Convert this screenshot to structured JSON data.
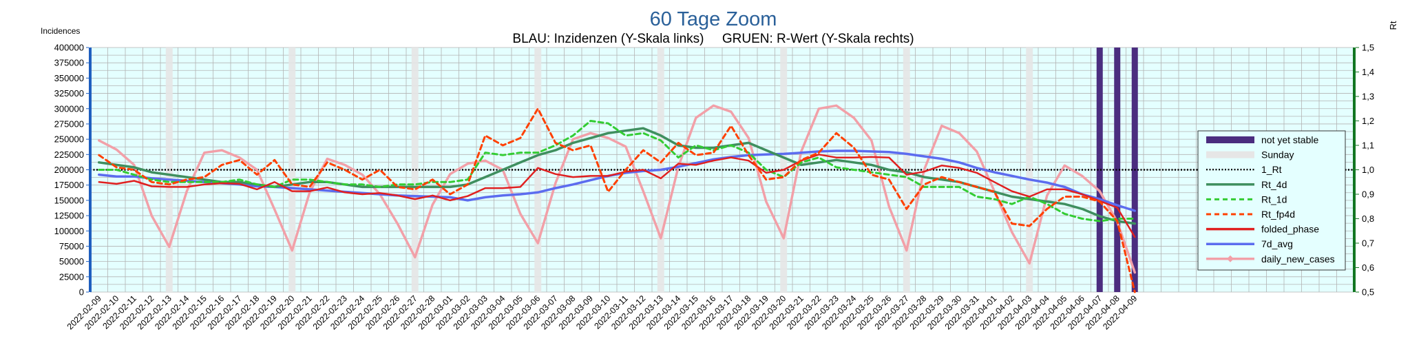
{
  "chart_data": {
    "type": "line",
    "title": "60 Tage Zoom",
    "subtitle": "BLAU: Inzidenzen (Y-Skala links)     GRUEN: R-Wert (Y-Skala rechts)",
    "ylabel_left": "Incidences",
    "ylabel_right": "Rt",
    "y_left_range": [
      0,
      400000
    ],
    "y_left_ticks": [
      "0",
      "25000",
      "50000",
      "75000",
      "100000",
      "125000",
      "150000",
      "175000",
      "200000",
      "225000",
      "250000",
      "275000",
      "300000",
      "325000",
      "350000",
      "375000",
      "400000"
    ],
    "y_right_range": [
      0.5,
      1.5
    ],
    "y_right_ticks": [
      "0,5",
      "0,6",
      "0,7",
      "0,8",
      "0,9",
      "1,0",
      "1,1",
      "1,2",
      "1,3",
      "1,4",
      "1,5"
    ],
    "grid": true,
    "legend_position": "right",
    "x": [
      "2022-02-09",
      "2022-02-10",
      "2022-02-11",
      "2022-02-12",
      "2022-02-13",
      "2022-02-14",
      "2022-02-15",
      "2022-02-16",
      "2022-02-17",
      "2022-02-18",
      "2022-02-19",
      "2022-02-20",
      "2022-02-21",
      "2022-02-22",
      "2022-02-23",
      "2022-02-24",
      "2022-02-25",
      "2022-02-26",
      "2022-02-27",
      "2022-02-28",
      "2022-03-01",
      "2022-03-02",
      "2022-03-03",
      "2022-03-04",
      "2022-03-05",
      "2022-03-06",
      "2022-03-07",
      "2022-03-08",
      "2022-03-09",
      "2022-03-10",
      "2022-03-11",
      "2022-03-12",
      "2022-03-13",
      "2022-03-14",
      "2022-03-15",
      "2022-03-16",
      "2022-03-17",
      "2022-03-18",
      "2022-03-19",
      "2022-03-20",
      "2022-03-21",
      "2022-03-22",
      "2022-03-23",
      "2022-03-24",
      "2022-03-25",
      "2022-03-26",
      "2022-03-27",
      "2022-03-28",
      "2022-03-29",
      "2022-03-30",
      "2022-03-31",
      "2022-04-01",
      "2022-04-02",
      "2022-04-03",
      "2022-04-04",
      "2022-04-05",
      "2022-04-06",
      "2022-04-07",
      "2022-04-08",
      "2022-04-09"
    ],
    "x_tick_labels": [
      "2022-02-09",
      "2022-02-10",
      "2022-02-11",
      "2022-02-12",
      "2022-02-13",
      "2022-02-14",
      "2022-02-15",
      "2022-02-16",
      "2022-02-17",
      "2022-02-18",
      "2022-02-19",
      "2022-02-20",
      "2022-02-21",
      "2022-02-22",
      "2022-02-23",
      "2022-02-24",
      "2022-02-25",
      "2022-02-26",
      "2022-02-27",
      "2022-02-28",
      "2022-03-01",
      "2022-03-02",
      "2022-03-03",
      "2022-03-04",
      "2022-03-05",
      "2022-03-06",
      "2022-03-07",
      "2022-03-08",
      "2022-03-09",
      "2022-03-10",
      "2022-03-11",
      "2022-03-12",
      "2022-03-13",
      "2022-03-14",
      "2022-03-15",
      "2022-03-16",
      "2022-03-17",
      "2022-03-18",
      "2022-03-19",
      "2022-03-20",
      "2022-03-21",
      "2022-03-22",
      "2022-03-23",
      "2022-03-24",
      "2022-03-25",
      "2022-03-26",
      "2022-03-27",
      "2022-03-28",
      "2022-03-29",
      "2022-03-30",
      "2022-03-31",
      "2022-04-01",
      "2022-04-02",
      "2022-04-03",
      "2022-04-04",
      "2022-04-05",
      "2022-04-06",
      "2022-04-07",
      "2022-04-08",
      "2022-04-09"
    ],
    "sundays": [
      "2022-02-13",
      "2022-02-20",
      "2022-02-27",
      "2022-03-06",
      "2022-03-13",
      "2022-03-20",
      "2022-03-27",
      "2022-04-03"
    ],
    "not_yet_stable": [
      "2022-04-07",
      "2022-04-08",
      "2022-04-09"
    ],
    "reference_line": {
      "name": "1_Rt",
      "value": 1.0,
      "axis": "right",
      "color": "#000000"
    },
    "series": [
      {
        "name": "Rt_4d",
        "axis": "right",
        "color": "#3f8f5f",
        "style": "solid",
        "values": [
          1.03,
          1.02,
          1.01,
          0.99,
          0.98,
          0.97,
          0.96,
          0.95,
          0.95,
          0.94,
          0.93,
          0.94,
          0.95,
          0.95,
          0.94,
          0.93,
          0.93,
          0.93,
          0.93,
          0.93,
          0.93,
          0.94,
          0.97,
          1.0,
          1.03,
          1.06,
          1.08,
          1.11,
          1.13,
          1.15,
          1.16,
          1.17,
          1.14,
          1.1,
          1.09,
          1.09,
          1.1,
          1.11,
          1.08,
          1.05,
          1.02,
          1.03,
          1.04,
          1.03,
          1.02,
          1.0,
          0.99,
          0.97,
          0.96,
          0.95,
          0.93,
          0.91,
          0.89,
          0.88,
          0.87,
          0.86,
          0.84,
          0.81,
          0.79,
          0.78
        ]
      },
      {
        "name": "Rt_1d",
        "axis": "right",
        "color": "#33cc33",
        "style": "dashed",
        "values": [
          1.0,
          1.0,
          0.98,
          0.96,
          0.95,
          0.95,
          0.95,
          0.95,
          0.96,
          0.94,
          0.93,
          0.96,
          0.96,
          0.95,
          0.94,
          0.94,
          0.93,
          0.94,
          0.94,
          0.95,
          0.95,
          0.96,
          1.07,
          1.06,
          1.07,
          1.07,
          1.1,
          1.14,
          1.2,
          1.19,
          1.14,
          1.15,
          1.12,
          1.05,
          1.1,
          1.08,
          1.1,
          1.07,
          1.0,
          0.97,
          1.03,
          1.05,
          1.01,
          1.0,
          0.99,
          0.98,
          0.97,
          0.93,
          0.93,
          0.93,
          0.89,
          0.88,
          0.86,
          0.89,
          0.86,
          0.82,
          0.8,
          0.79,
          0.8,
          0.8
        ]
      },
      {
        "name": "Rt_fp4d",
        "axis": "right",
        "color": "#ff4000",
        "style": "dashed",
        "values": [
          1.06,
          1.01,
          1.0,
          0.95,
          0.94,
          0.96,
          0.97,
          1.02,
          1.04,
          0.98,
          1.04,
          0.94,
          0.93,
          1.03,
          1.0,
          0.96,
          1.0,
          0.93,
          0.92,
          0.96,
          0.9,
          0.94,
          1.14,
          1.1,
          1.13,
          1.25,
          1.11,
          1.08,
          1.1,
          0.91,
          1.0,
          1.08,
          1.03,
          1.11,
          1.06,
          1.07,
          1.18,
          1.06,
          0.96,
          0.97,
          1.04,
          1.07,
          1.15,
          1.09,
          0.98,
          0.96,
          0.84,
          0.94,
          0.97,
          0.95,
          0.93,
          0.91,
          0.78,
          0.77,
          0.84,
          0.89,
          0.89,
          0.87,
          0.79,
          0.5
        ]
      },
      {
        "name": "folded_phase",
        "axis": "left",
        "color": "#e02020",
        "style": "solid",
        "values": [
          180000,
          177000,
          182000,
          173000,
          172000,
          172000,
          176000,
          178000,
          177000,
          168000,
          180000,
          165000,
          165000,
          171000,
          163000,
          160000,
          162000,
          158000,
          152000,
          158000,
          150000,
          157000,
          170000,
          170000,
          172000,
          203000,
          193000,
          188000,
          190000,
          190000,
          197000,
          200000,
          186000,
          210000,
          208000,
          215000,
          220000,
          215000,
          195000,
          200000,
          215000,
          225000,
          220000,
          220000,
          221000,
          220000,
          192000,
          197000,
          207000,
          203000,
          195000,
          180000,
          165000,
          156000,
          168000,
          168000,
          160000,
          149000,
          138000,
          90000
        ]
      },
      {
        "name": "7d_avg",
        "axis": "left",
        "color": "#5c6cef",
        "style": "solid",
        "values": [
          192000,
          189000,
          189000,
          186000,
          184000,
          182000,
          180000,
          178000,
          176000,
          173000,
          172000,
          170000,
          168000,
          166000,
          164000,
          162000,
          160000,
          158000,
          157000,
          156000,
          155000,
          150000,
          155000,
          158000,
          160000,
          163000,
          170000,
          176000,
          183000,
          190000,
          195000,
          198000,
          200000,
          205000,
          211000,
          217000,
          221000,
          224000,
          225000,
          226000,
          228000,
          230000,
          231000,
          231000,
          230000,
          229000,
          226000,
          222000,
          218000,
          212000,
          203000,
          196000,
          190000,
          184000,
          179000,
          172000,
          160000,
          152000,
          142000,
          133000
        ]
      },
      {
        "name": "daily_new_cases",
        "axis": "left",
        "color": "#f2a0a8",
        "style": "solid",
        "values": [
          248000,
          233000,
          208000,
          125000,
          74000,
          165000,
          228000,
          232000,
          220000,
          200000,
          135000,
          68000,
          163000,
          218000,
          208000,
          192000,
          160000,
          112000,
          57000,
          143000,
          193000,
          210000,
          215000,
          200000,
          128000,
          80000,
          178000,
          250000,
          260000,
          252000,
          238000,
          165000,
          88000,
          205000,
          285000,
          305000,
          295000,
          252000,
          148000,
          88000,
          230000,
          300000,
          305000,
          285000,
          248000,
          140000,
          68000,
          200000,
          272000,
          260000,
          230000,
          165000,
          98000,
          47000,
          158000,
          207000,
          190000,
          165000,
          115000,
          32000
        ]
      }
    ],
    "legend": [
      {
        "name": "not yet stable",
        "kind": "bar",
        "color": "#4b2d7f"
      },
      {
        "name": "Sunday",
        "kind": "bar",
        "color": "#e6e6e6"
      },
      {
        "name": "1_Rt",
        "kind": "dotted",
        "color": "#000000"
      },
      {
        "name": "Rt_4d",
        "kind": "solid",
        "color": "#3f8f5f"
      },
      {
        "name": "Rt_1d",
        "kind": "dashed",
        "color": "#33cc33"
      },
      {
        "name": "Rt_fp4d",
        "kind": "dashed",
        "color": "#ff4000"
      },
      {
        "name": "folded_phase",
        "kind": "solid",
        "color": "#e02020"
      },
      {
        "name": "7d_avg",
        "kind": "solid",
        "color": "#5c6cef"
      },
      {
        "name": "daily_new_cases",
        "kind": "marker",
        "color": "#f2a0a8"
      }
    ],
    "colors": {
      "plot_background": "#e4ffff",
      "grid": "#b3b3b3",
      "left_axis": "#1f5fbf",
      "right_axis": "#127622"
    }
  }
}
